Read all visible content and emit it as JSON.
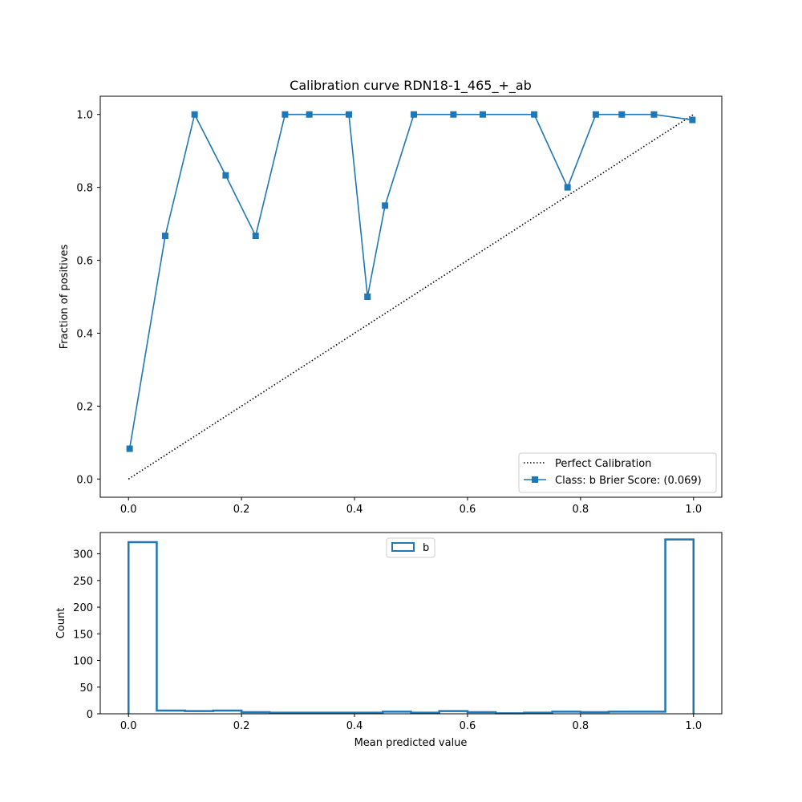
{
  "chart_data": [
    {
      "type": "line",
      "title": "Calibration curve RDN18-1_465_+_ab",
      "xlabel": "",
      "ylabel": "Fraction of positives",
      "xlim": [
        -0.05,
        1.05
      ],
      "ylim": [
        -0.05,
        1.05
      ],
      "xticks": [
        "0.0",
        "0.2",
        "0.4",
        "0.6",
        "0.8",
        "1.0"
      ],
      "yticks": [
        "0.0",
        "0.2",
        "0.4",
        "0.6",
        "0.8",
        "1.0"
      ],
      "legend_position": "lower-right",
      "series": [
        {
          "name": "Perfect Calibration",
          "style": "dotted",
          "color": "#000000",
          "x": [
            0,
            1
          ],
          "y": [
            0,
            1
          ]
        },
        {
          "name": "Class: b Brier Score: (0.069)",
          "style": "solid",
          "marker": "square",
          "color": "#1f77b4",
          "x": [
            0.002,
            0.065,
            0.117,
            0.172,
            0.225,
            0.277,
            0.32,
            0.39,
            0.423,
            0.454,
            0.505,
            0.575,
            0.627,
            0.718,
            0.777,
            0.827,
            0.873,
            0.93,
            0.998
          ],
          "y": [
            0.083,
            0.667,
            1.0,
            0.833,
            0.667,
            1.0,
            1.0,
            1.0,
            0.5,
            0.75,
            1.0,
            1.0,
            1.0,
            1.0,
            0.8,
            1.0,
            1.0,
            1.0,
            0.985
          ]
        }
      ]
    },
    {
      "type": "histogram",
      "title": "",
      "xlabel": "Mean predicted value",
      "ylabel": "Count",
      "xlim": [
        -0.05,
        1.05
      ],
      "ylim": [
        0,
        340
      ],
      "xticks": [
        "0.0",
        "0.2",
        "0.4",
        "0.6",
        "0.8",
        "1.0"
      ],
      "yticks": [
        "0",
        "50",
        "100",
        "150",
        "200",
        "250",
        "300"
      ],
      "legend_position": "upper-center",
      "series": [
        {
          "name": "b",
          "style": "step",
          "color": "#1f77b4",
          "bin_edges": [
            0,
            0.05,
            0.1,
            0.15,
            0.2,
            0.25,
            0.3,
            0.35,
            0.4,
            0.45,
            0.5,
            0.55,
            0.6,
            0.65,
            0.7,
            0.75,
            0.8,
            0.85,
            0.9,
            0.95,
            1.0
          ],
          "counts": [
            322,
            6,
            5,
            6,
            3,
            2,
            2,
            2,
            2,
            4,
            2,
            5,
            3,
            1,
            2,
            4,
            3,
            4,
            4,
            327
          ]
        }
      ]
    }
  ]
}
